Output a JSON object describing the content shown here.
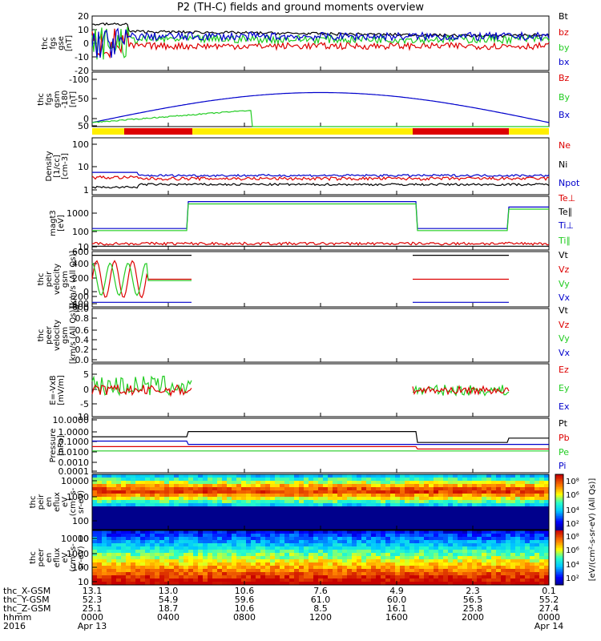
{
  "title": "P2 (TH-C) fields and ground moments overview",
  "colors": {
    "black": "#000000",
    "red": "#dd0000",
    "green": "#22cc22",
    "blue": "#0000cc",
    "yellow": "#ffee00"
  },
  "chart_data": [
    {
      "type": "line",
      "ylabel": [
        "thc",
        "fgs",
        "gse",
        "[nT]"
      ],
      "ticks": [
        "20",
        "10",
        "0",
        "-10",
        "-20"
      ],
      "ylim": [
        -20,
        20
      ],
      "legend": [
        {
          "name": "Bt",
          "color": "black"
        },
        {
          "name": "bz",
          "color": "red"
        },
        {
          "name": "by",
          "color": "green"
        },
        {
          "name": "bx",
          "color": "blue"
        }
      ]
    },
    {
      "type": "line",
      "ylabel": [
        "thc",
        "fgs",
        "gsm",
        "-180",
        "[nT]"
      ],
      "ticks": [
        "-100",
        "-50",
        "0",
        "50"
      ],
      "ylim": [
        -125,
        75
      ],
      "legend": [
        {
          "name": "Bz",
          "color": "red"
        },
        {
          "name": "By",
          "color": "green"
        },
        {
          "name": "Bx",
          "color": "blue"
        }
      ]
    },
    {
      "type": "line",
      "ylabel": [
        "Density",
        "[1/cc]",
        "[cm-3]"
      ],
      "ticks": [
        "100",
        "10",
        "1"
      ],
      "log": true,
      "legend": [
        {
          "name": "Ne",
          "color": "red"
        },
        {
          "name": "Ni",
          "color": "black"
        },
        {
          "name": "Npot",
          "color": "blue"
        }
      ]
    },
    {
      "type": "line",
      "ylabel": [
        "magt3",
        "[eV]"
      ],
      "ticks": [
        "1000",
        "100",
        "10"
      ],
      "log": true,
      "legend": [
        {
          "name": "Te⊥",
          "color": "red"
        },
        {
          "name": "Te∥",
          "color": "black"
        },
        {
          "name": "Ti⊥",
          "color": "blue"
        },
        {
          "name": "Ti∥",
          "color": "green"
        }
      ]
    },
    {
      "type": "line",
      "ylabel": [
        "thc",
        "peir",
        "velocity",
        "gsm",
        "[km/s (All Qs)]"
      ],
      "ticks": [
        "600",
        "400",
        "200",
        "0",
        "-200",
        "-400",
        "-600"
      ],
      "ylim": [
        -600,
        600
      ],
      "legend": [
        {
          "name": "Vt",
          "color": "black"
        },
        {
          "name": "Vz",
          "color": "red"
        },
        {
          "name": "Vy",
          "color": "green"
        },
        {
          "name": "Vx",
          "color": "blue"
        }
      ]
    },
    {
      "type": "line",
      "ylabel": [
        "thc",
        "peer",
        "velocity",
        "gsm",
        "[km/s (All Qs)]"
      ],
      "ticks": [
        "1.0",
        "0.8",
        "0.6",
        "0.4",
        "0.2",
        "0.0"
      ],
      "ylim": [
        0,
        1
      ],
      "legend": [
        {
          "name": "Vt",
          "color": "black"
        },
        {
          "name": "Vz",
          "color": "red"
        },
        {
          "name": "Vy",
          "color": "green"
        },
        {
          "name": "Vx",
          "color": "blue"
        }
      ]
    },
    {
      "type": "line",
      "ylabel": [
        "E=-VxB",
        "[mV/m]"
      ],
      "ticks": [
        "5",
        "0",
        "-5",
        "-10"
      ],
      "ylim": [
        -10,
        10
      ],
      "legend": [
        {
          "name": "Ez",
          "color": "red"
        },
        {
          "name": "Ey",
          "color": "green"
        },
        {
          "name": "Ex",
          "color": "blue"
        }
      ]
    },
    {
      "type": "line",
      "ylabel": [
        "Pressure",
        "[nPa]"
      ],
      "ticks": [
        "10.0000",
        "1.0000",
        "0.1000",
        "0.0100",
        "0.0010",
        "0.0001"
      ],
      "log": true,
      "legend": [
        {
          "name": "Pt",
          "color": "black"
        },
        {
          "name": "Pb",
          "color": "red"
        },
        {
          "name": "Pe",
          "color": "green"
        },
        {
          "name": "Pi",
          "color": "blue"
        }
      ]
    },
    {
      "type": "heatmap",
      "ylabel": [
        "thc",
        "peir",
        "en",
        "eflux",
        "eV",
        "(cm²-s-",
        "sr-eV)"
      ],
      "ticks": [
        "10000",
        "1000",
        "100",
        "10"
      ],
      "log": true
    },
    {
      "type": "heatmap",
      "ylabel": [
        "thc",
        "peer",
        "en",
        "eflux",
        "eV",
        "(cm²-s-",
        "sr-eV)"
      ],
      "ticks": [
        "10000",
        "1000",
        "100",
        "10"
      ],
      "log": true
    }
  ],
  "colorbar": {
    "label": "[eV/(cm²-s-sr-eV) (All Qs)]",
    "ticks": [
      "10⁸",
      "10⁶",
      "10⁴",
      "10²",
      "10⁸",
      "10⁶",
      "10⁴",
      "10²"
    ]
  },
  "xaxis": {
    "row_labels": [
      "thc_X-GSM",
      "thc_Y-GSM",
      "thc_Z-GSM",
      "hhmm",
      "2016"
    ],
    "columns": [
      {
        "vals": [
          "13.1",
          "52.3",
          "25.1",
          "0000",
          "Apr 13"
        ]
      },
      {
        "vals": [
          "13.0",
          "54.9",
          "18.7",
          "0400",
          ""
        ]
      },
      {
        "vals": [
          "10.6",
          "59.6",
          "10.6",
          "0800",
          ""
        ]
      },
      {
        "vals": [
          "7.6",
          "61.0",
          "8.5",
          "1200",
          ""
        ]
      },
      {
        "vals": [
          "4.9",
          "60.0",
          "16.1",
          "1600",
          ""
        ]
      },
      {
        "vals": [
          "2.3",
          "56.5",
          "25.8",
          "2000",
          ""
        ]
      },
      {
        "vals": [
          "0.1",
          "55.2",
          "27.4",
          "0000",
          "Apr 14"
        ]
      }
    ]
  }
}
